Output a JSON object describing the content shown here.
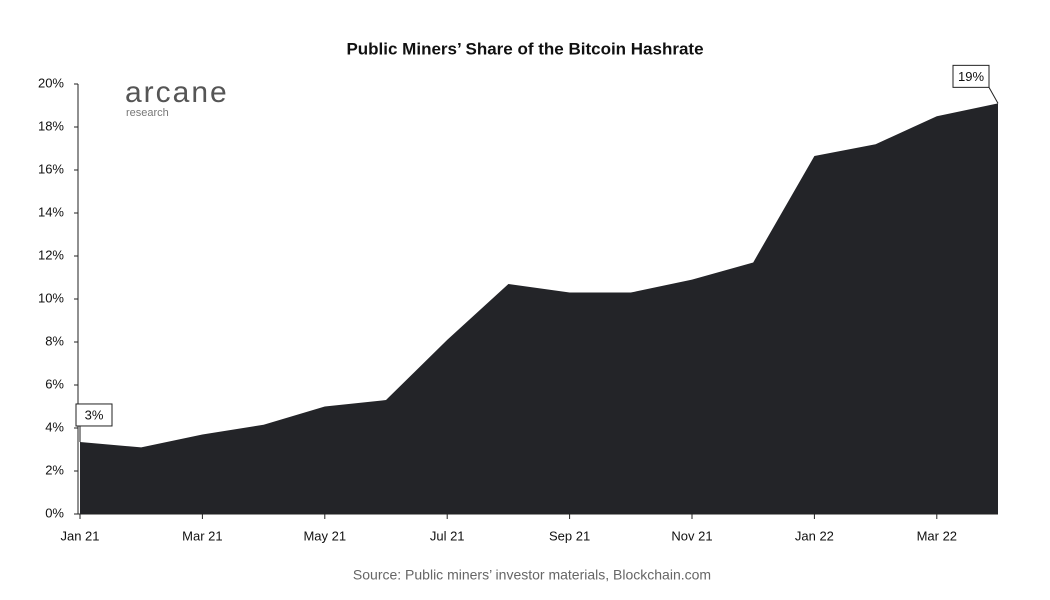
{
  "chart_data": {
    "type": "area",
    "title": "Public Miners’ Share of the Bitcoin Hashrate",
    "source": "Source: Public miners’ investor materials, Blockchain.com",
    "logo": {
      "name": "arcane",
      "tagline": "research"
    },
    "categories": [
      "Jan 21",
      null,
      "Mar 21",
      null,
      "May 21",
      null,
      "Jul 21",
      null,
      "Sep 21",
      null,
      "Nov 21",
      null,
      "Jan 22",
      null,
      "Mar 22",
      null
    ],
    "values": [
      3.35,
      3.1,
      3.7,
      4.15,
      5.0,
      5.3,
      8.1,
      10.7,
      10.3,
      10.3,
      10.9,
      11.7,
      16.65,
      17.2,
      18.5,
      19.1
    ],
    "value_labels": [
      "3%",
      null,
      null,
      null,
      null,
      null,
      null,
      null,
      null,
      null,
      null,
      null,
      null,
      null,
      null,
      "19%"
    ],
    "color": "#232428",
    "ylim": [
      0,
      20
    ],
    "yticks": [
      {
        "value": 0,
        "label": "0%"
      },
      {
        "value": 2,
        "label": "2%"
      },
      {
        "value": 4,
        "label": "4%"
      },
      {
        "value": 6,
        "label": "6%"
      },
      {
        "value": 8,
        "label": "8%"
      },
      {
        "value": 10,
        "label": "10%"
      },
      {
        "value": 12,
        "label": "12%"
      },
      {
        "value": 14,
        "label": "14%"
      },
      {
        "value": 16,
        "label": "16%"
      },
      {
        "value": 18,
        "label": "18%"
      },
      {
        "value": 20,
        "label": "20%"
      }
    ],
    "grid": false
  }
}
